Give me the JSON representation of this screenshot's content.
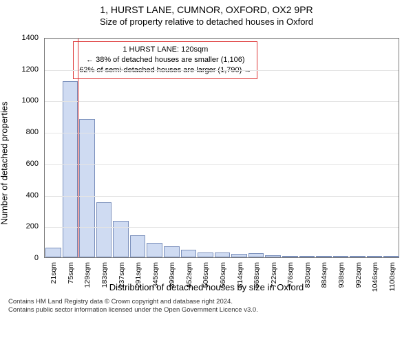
{
  "title": "1, HURST LANE, CUMNOR, OXFORD, OX2 9PR",
  "subtitle": "Size of property relative to detached houses in Oxford",
  "y_axis_title": "Number of detached properties",
  "x_axis_title": "Distribution of detached houses by size in Oxford",
  "y_max": 1400,
  "y_tick_step": 200,
  "y_ticks": [
    0,
    200,
    400,
    600,
    800,
    1000,
    1200,
    1400
  ],
  "bar_fill": "#cfdbf2",
  "bar_stroke": "#7a8fbb",
  "grid_color": "#e4e4e4",
  "marker_color": "#d33",
  "background_color": "#ffffff",
  "x_labels": [
    "21sqm",
    "75sqm",
    "129sqm",
    "183sqm",
    "237sqm",
    "291sqm",
    "345sqm",
    "399sqm",
    "452sqm",
    "506sqm",
    "560sqm",
    "614sqm",
    "668sqm",
    "722sqm",
    "776sqm",
    "830sqm",
    "884sqm",
    "938sqm",
    "992sqm",
    "1046sqm",
    "1100sqm"
  ],
  "bars": [
    60,
    1120,
    880,
    350,
    230,
    140,
    90,
    70,
    50,
    30,
    30,
    20,
    25,
    15,
    10,
    5,
    5,
    5,
    5,
    5,
    5
  ],
  "marker_bin_index": 2,
  "annotation": {
    "line1": "1 HURST LANE: 120sqm",
    "line2": "← 38% of detached houses are smaller (1,106)",
    "line3": "62% of semi-detached houses are larger (1,790) →"
  },
  "footer_line1": "Contains HM Land Registry data © Crown copyright and database right 2024.",
  "footer_line2": "Contains public sector information licensed under the Open Government Licence v3.0."
}
